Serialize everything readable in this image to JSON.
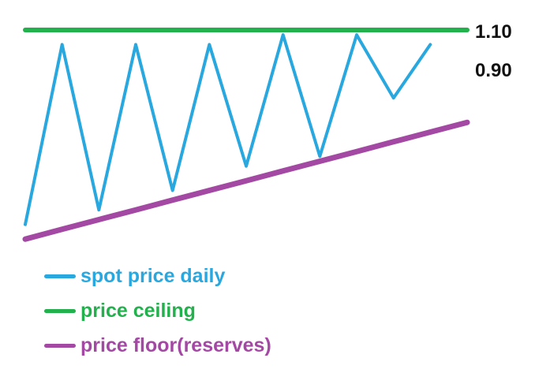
{
  "chart_data": {
    "type": "line",
    "title": "",
    "xlabel": "",
    "ylabel": "",
    "x": [
      0,
      1,
      2,
      3,
      4,
      5,
      6,
      7,
      8,
      9,
      10,
      11,
      12
    ],
    "y_ticks": [
      "1.10",
      "0.90"
    ],
    "ylim": [
      0.68,
      1.1
    ],
    "series": [
      {
        "name": "spot price daily",
        "color": "#29a8e0",
        "values": [
          0.7,
          1.07,
          0.73,
          1.07,
          0.77,
          1.07,
          0.82,
          1.09,
          0.84,
          1.09,
          0.96,
          1.07,
          null
        ]
      },
      {
        "name": "price ceiling",
        "color": "#22b14c",
        "values": [
          1.1,
          1.1,
          1.1,
          1.1,
          1.1,
          1.1,
          1.1,
          1.1,
          1.1,
          1.1,
          1.1,
          1.1,
          1.1
        ]
      },
      {
        "name": "price floor(reserves)",
        "color": "#a349a4",
        "values": [
          0.67,
          0.69,
          0.71,
          0.73,
          0.75,
          0.77,
          0.79,
          0.81,
          0.83,
          0.85,
          0.87,
          0.89,
          0.91
        ]
      }
    ],
    "grid": false,
    "legend_position": "bottom-left"
  }
}
